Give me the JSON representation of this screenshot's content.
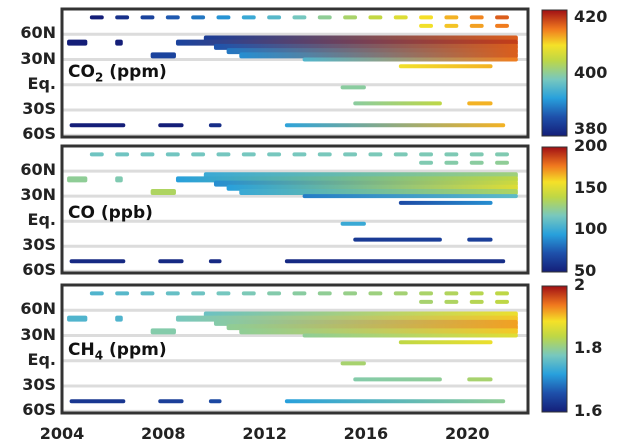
{
  "chart_data": {
    "type": "heatmap",
    "x_tick_labels": [
      "2004",
      "2008",
      "2012",
      "2016",
      "2020"
    ],
    "xlim": [
      2004,
      2022.4
    ],
    "y_tick_labels": [
      "60N",
      "30N",
      "Eq.",
      "30S",
      "60S"
    ],
    "y_tick_values": [
      60,
      30,
      0,
      -30,
      -60
    ],
    "ylim": [
      -62,
      90
    ],
    "grid": true,
    "colormap": "jet",
    "segment_columns": [
      "lat",
      "start_year",
      "end_year",
      "value_start",
      "value_end",
      "dashed"
    ],
    "panels": [
      {
        "species": "CO",
        "sub": "2",
        "unit": "(ppm)",
        "colorbar": {
          "range": [
            378,
            423
          ],
          "ticks": [
            420,
            400,
            380
          ],
          "tick_labels": [
            "420",
            "400",
            "380"
          ]
        },
        "segments": [
          [
            80,
            2005,
            2022,
            378,
            418,
            true
          ],
          [
            70,
            2018,
            2022,
            410,
            416,
            true
          ],
          [
            55,
            2009.6,
            2022,
            382,
            418,
            false
          ],
          [
            50,
            2004.2,
            2005.0,
            377,
            377,
            false
          ],
          [
            50,
            2006.1,
            2006.4,
            377,
            377,
            false
          ],
          [
            50,
            2008.5,
            2022,
            383,
            420,
            false
          ],
          [
            45,
            2010,
            2022,
            385,
            418,
            false
          ],
          [
            40,
            2010.5,
            2022,
            388,
            418,
            false
          ],
          [
            35,
            2007.5,
            2008.5,
            383,
            383,
            false
          ],
          [
            35,
            2011,
            2022,
            390,
            418,
            false
          ],
          [
            30,
            2013.5,
            2022,
            395,
            416,
            false
          ],
          [
            22,
            2017.3,
            2021,
            410,
            413,
            false
          ],
          [
            -3,
            2015,
            2016,
            400,
            400,
            false
          ],
          [
            -22,
            2015.5,
            2019,
            400,
            405,
            false
          ],
          [
            -22,
            2020,
            2021,
            413,
            413,
            false
          ],
          [
            -48,
            2004.3,
            2006.5,
            376,
            376,
            false
          ],
          [
            -48,
            2007.8,
            2008.8,
            378,
            378,
            false
          ],
          [
            -48,
            2009.8,
            2010.3,
            380,
            380,
            false
          ],
          [
            -48,
            2012.8,
            2021.5,
            392,
            413,
            false
          ]
        ]
      },
      {
        "species": "CO",
        "sub": "",
        "unit": "(ppb)",
        "colorbar": {
          "range": [
            50,
            200
          ],
          "ticks": [
            200,
            150,
            100,
            50
          ],
          "tick_labels": [
            "200",
            "150",
            "100",
            "50"
          ]
        },
        "segments": [
          [
            80,
            2005,
            2022,
            115,
            120,
            true
          ],
          [
            70,
            2018,
            2022,
            120,
            125,
            true
          ],
          [
            55,
            2009.6,
            2022,
            100,
            130,
            false
          ],
          [
            50,
            2004.2,
            2005.0,
            125,
            125,
            false
          ],
          [
            50,
            2006.1,
            2006.4,
            120,
            120,
            false
          ],
          [
            50,
            2008.5,
            2022,
            95,
            140,
            false
          ],
          [
            45,
            2010,
            2022,
            90,
            145,
            false
          ],
          [
            40,
            2010.5,
            2022,
            95,
            150,
            false
          ],
          [
            35,
            2007.5,
            2008.5,
            135,
            135,
            false
          ],
          [
            35,
            2011,
            2022,
            100,
            135,
            false
          ],
          [
            30,
            2013.5,
            2022,
            85,
            110,
            false
          ],
          [
            22,
            2017.3,
            2021,
            70,
            90,
            false
          ],
          [
            -3,
            2015,
            2016,
            100,
            100,
            false
          ],
          [
            -22,
            2015.5,
            2019,
            62,
            65,
            false
          ],
          [
            -22,
            2020,
            2021,
            65,
            65,
            false
          ],
          [
            -48,
            2004.3,
            2006.5,
            55,
            55,
            false
          ],
          [
            -48,
            2007.8,
            2008.8,
            55,
            55,
            false
          ],
          [
            -48,
            2009.8,
            2010.3,
            55,
            55,
            false
          ],
          [
            -48,
            2012.8,
            2021.5,
            55,
            57,
            false
          ]
        ]
      },
      {
        "species": "CH",
        "sub": "4",
        "unit": "(ppm)",
        "colorbar": {
          "range": [
            1.6,
            2.0
          ],
          "ticks": [
            2.0,
            1.8,
            1.6
          ],
          "tick_labels": [
            "2",
            "1.8",
            "1.6"
          ]
        },
        "segments": [
          [
            80,
            2005,
            2022,
            1.75,
            1.84,
            true
          ],
          [
            70,
            2018,
            2022,
            1.82,
            1.84,
            true
          ],
          [
            55,
            2009.6,
            2022,
            1.77,
            1.88,
            false
          ],
          [
            50,
            2004.2,
            2005.0,
            1.75,
            1.75,
            false
          ],
          [
            50,
            2006.1,
            2006.4,
            1.75,
            1.75,
            false
          ],
          [
            50,
            2008.5,
            2022,
            1.78,
            1.9,
            false
          ],
          [
            45,
            2010,
            2022,
            1.79,
            1.92,
            false
          ],
          [
            40,
            2010.5,
            2022,
            1.8,
            1.92,
            false
          ],
          [
            35,
            2007.5,
            2008.5,
            1.79,
            1.79,
            false
          ],
          [
            35,
            2011,
            2022,
            1.8,
            1.9,
            false
          ],
          [
            30,
            2013.5,
            2022,
            1.8,
            1.87,
            false
          ],
          [
            22,
            2017.3,
            2021,
            1.84,
            1.88,
            false
          ],
          [
            -3,
            2015,
            2016,
            1.82,
            1.82,
            false
          ],
          [
            -22,
            2015.5,
            2019,
            1.79,
            1.8,
            false
          ],
          [
            -22,
            2020,
            2021,
            1.82,
            1.82,
            false
          ],
          [
            -48,
            2004.3,
            2006.5,
            1.63,
            1.63,
            false
          ],
          [
            -48,
            2007.8,
            2008.8,
            1.64,
            1.64,
            false
          ],
          [
            -48,
            2009.8,
            2010.3,
            1.65,
            1.65,
            false
          ],
          [
            -48,
            2012.8,
            2021.5,
            1.72,
            1.8,
            false
          ]
        ]
      }
    ]
  }
}
